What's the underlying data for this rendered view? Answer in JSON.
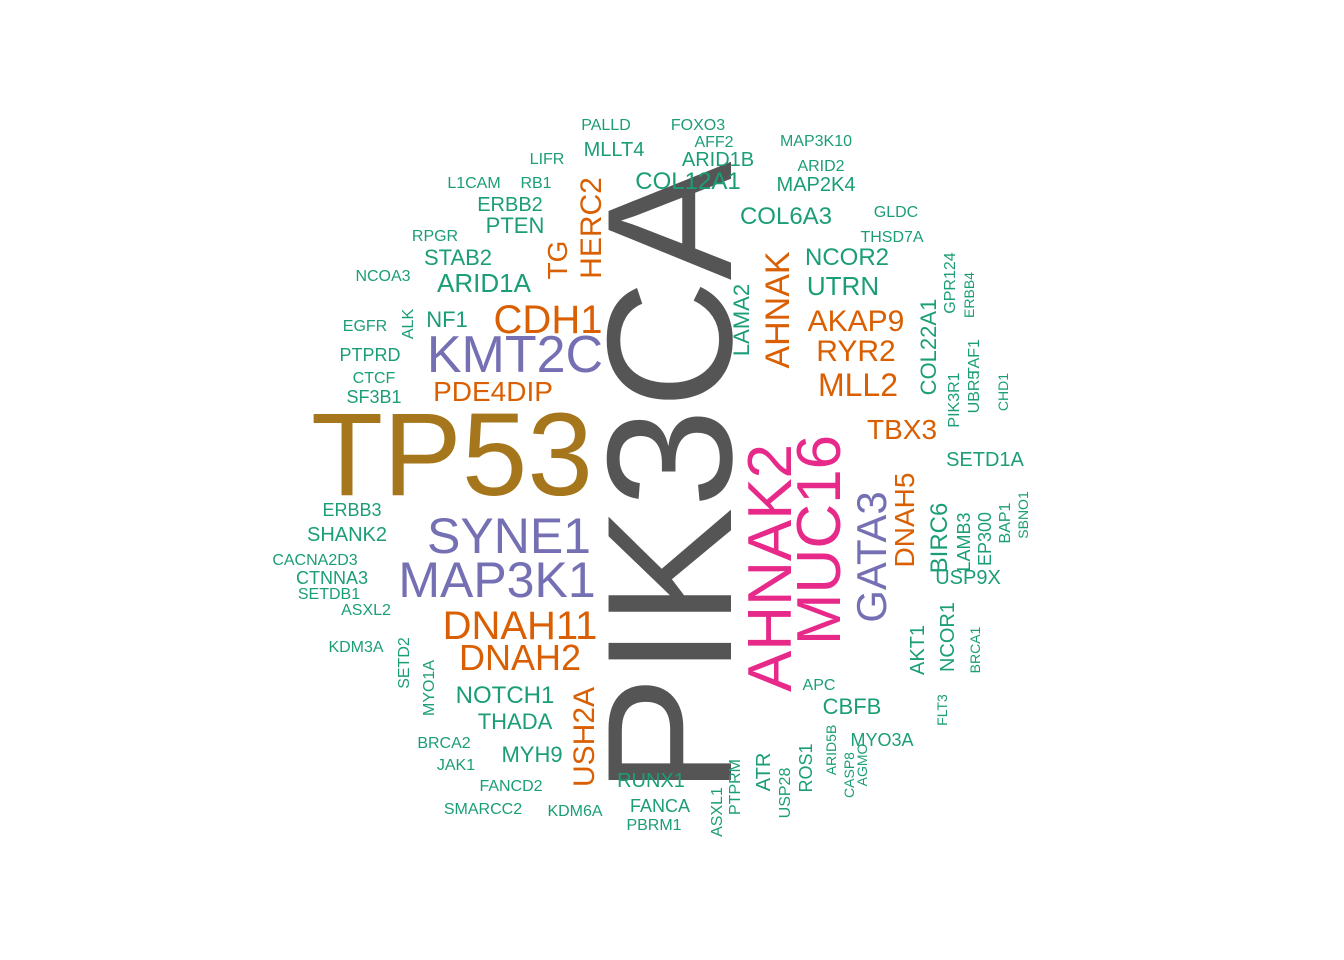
{
  "colors": {
    "gray": "#555555",
    "brown": "#A6761D",
    "purple": "#7570B3",
    "magenta": "#E7298A",
    "orange": "#D95F02",
    "teal": "#1B9E77"
  },
  "words": [
    {
      "text": "PIK3CA",
      "color": "gray"
    },
    {
      "text": "TP53",
      "color": "brown"
    },
    {
      "text": "AHNAK2",
      "color": "magenta"
    },
    {
      "text": "MUC16",
      "color": "magenta"
    },
    {
      "text": "KMT2C",
      "color": "purple"
    },
    {
      "text": "SYNE1",
      "color": "purple"
    },
    {
      "text": "MAP3K1",
      "color": "purple"
    },
    {
      "text": "GATA3",
      "color": "purple"
    },
    {
      "text": "CDH1",
      "color": "orange"
    },
    {
      "text": "DNAH11",
      "color": "orange"
    },
    {
      "text": "DNAH2",
      "color": "orange"
    },
    {
      "text": "AHNAK",
      "color": "orange"
    },
    {
      "text": "HERC2",
      "color": "orange"
    },
    {
      "text": "TG",
      "color": "orange"
    },
    {
      "text": "PDE4DIP",
      "color": "orange"
    },
    {
      "text": "AKAP9",
      "color": "orange"
    },
    {
      "text": "RYR2",
      "color": "orange"
    },
    {
      "text": "MLL2",
      "color": "orange"
    },
    {
      "text": "TBX3",
      "color": "orange"
    },
    {
      "text": "DNAH5",
      "color": "orange"
    },
    {
      "text": "USH2A",
      "color": "orange"
    },
    {
      "text": "PALLD",
      "color": "teal"
    },
    {
      "text": "FOXO3",
      "color": "teal"
    },
    {
      "text": "AFF2",
      "color": "teal"
    },
    {
      "text": "MAP3K10",
      "color": "teal"
    },
    {
      "text": "LIFR",
      "color": "teal"
    },
    {
      "text": "MLLT4",
      "color": "teal"
    },
    {
      "text": "ARID1B",
      "color": "teal"
    },
    {
      "text": "ARID2",
      "color": "teal"
    },
    {
      "text": "L1CAM",
      "color": "teal"
    },
    {
      "text": "RB1",
      "color": "teal"
    },
    {
      "text": "COL12A1",
      "color": "teal"
    },
    {
      "text": "MAP2K4",
      "color": "teal"
    },
    {
      "text": "ERBB2",
      "color": "teal"
    },
    {
      "text": "COL6A3",
      "color": "teal"
    },
    {
      "text": "GLDC",
      "color": "teal"
    },
    {
      "text": "PTEN",
      "color": "teal"
    },
    {
      "text": "RPGR",
      "color": "teal"
    },
    {
      "text": "THSD7A",
      "color": "teal"
    },
    {
      "text": "STAB2",
      "color": "teal"
    },
    {
      "text": "NCOR2",
      "color": "teal"
    },
    {
      "text": "GPR124",
      "color": "teal"
    },
    {
      "text": "NCOA3",
      "color": "teal"
    },
    {
      "text": "ARID1A",
      "color": "teal"
    },
    {
      "text": "LAMA2",
      "color": "teal"
    },
    {
      "text": "UTRN",
      "color": "teal"
    },
    {
      "text": "ERBB4",
      "color": "teal"
    },
    {
      "text": "ALK",
      "color": "teal"
    },
    {
      "text": "NF1",
      "color": "teal"
    },
    {
      "text": "EGFR",
      "color": "teal"
    },
    {
      "text": "COL22A1",
      "color": "teal"
    },
    {
      "text": "PTPRD",
      "color": "teal"
    },
    {
      "text": "PIK3R1",
      "color": "teal"
    },
    {
      "text": "UBR5",
      "color": "teal"
    },
    {
      "text": "TAF1",
      "color": "teal"
    },
    {
      "text": "CTCF",
      "color": "teal"
    },
    {
      "text": "CHD1",
      "color": "teal"
    },
    {
      "text": "SF3B1",
      "color": "teal"
    },
    {
      "text": "SETD1A",
      "color": "teal"
    },
    {
      "text": "ERBB3",
      "color": "teal"
    },
    {
      "text": "SHANK2",
      "color": "teal"
    },
    {
      "text": "BIRC6",
      "color": "teal"
    },
    {
      "text": "LAMB3",
      "color": "teal"
    },
    {
      "text": "EP300",
      "color": "teal"
    },
    {
      "text": "BAP1",
      "color": "teal"
    },
    {
      "text": "SBNO1",
      "color": "teal"
    },
    {
      "text": "CACNA2D3",
      "color": "teal"
    },
    {
      "text": "CTNNA3",
      "color": "teal"
    },
    {
      "text": "USP9X",
      "color": "teal"
    },
    {
      "text": "SETDB1",
      "color": "teal"
    },
    {
      "text": "ASXL2",
      "color": "teal"
    },
    {
      "text": "SETD2",
      "color": "teal"
    },
    {
      "text": "KDM3A",
      "color": "teal"
    },
    {
      "text": "MYO1A",
      "color": "teal"
    },
    {
      "text": "NCOR1",
      "color": "teal"
    },
    {
      "text": "AKT1",
      "color": "teal"
    },
    {
      "text": "BRCA1",
      "color": "teal"
    },
    {
      "text": "NOTCH1",
      "color": "teal"
    },
    {
      "text": "APC",
      "color": "teal"
    },
    {
      "text": "FLT3",
      "color": "teal"
    },
    {
      "text": "THADA",
      "color": "teal"
    },
    {
      "text": "CBFB",
      "color": "teal"
    },
    {
      "text": "MYO3A",
      "color": "teal"
    },
    {
      "text": "BRCA2",
      "color": "teal"
    },
    {
      "text": "MYH9",
      "color": "teal"
    },
    {
      "text": "ARID5B",
      "color": "teal"
    },
    {
      "text": "CASP8",
      "color": "teal"
    },
    {
      "text": "AGMO",
      "color": "teal"
    },
    {
      "text": "ROS1",
      "color": "teal"
    },
    {
      "text": "JAK1",
      "color": "teal"
    },
    {
      "text": "ATR",
      "color": "teal"
    },
    {
      "text": "USP28",
      "color": "teal"
    },
    {
      "text": "RUNX1",
      "color": "teal"
    },
    {
      "text": "FANCD2",
      "color": "teal"
    },
    {
      "text": "PTPRM",
      "color": "teal"
    },
    {
      "text": "FANCA",
      "color": "teal"
    },
    {
      "text": "ASXL1",
      "color": "teal"
    },
    {
      "text": "SMARCC2",
      "color": "teal"
    },
    {
      "text": "KDM6A",
      "color": "teal"
    },
    {
      "text": "PBRM1",
      "color": "teal"
    }
  ]
}
